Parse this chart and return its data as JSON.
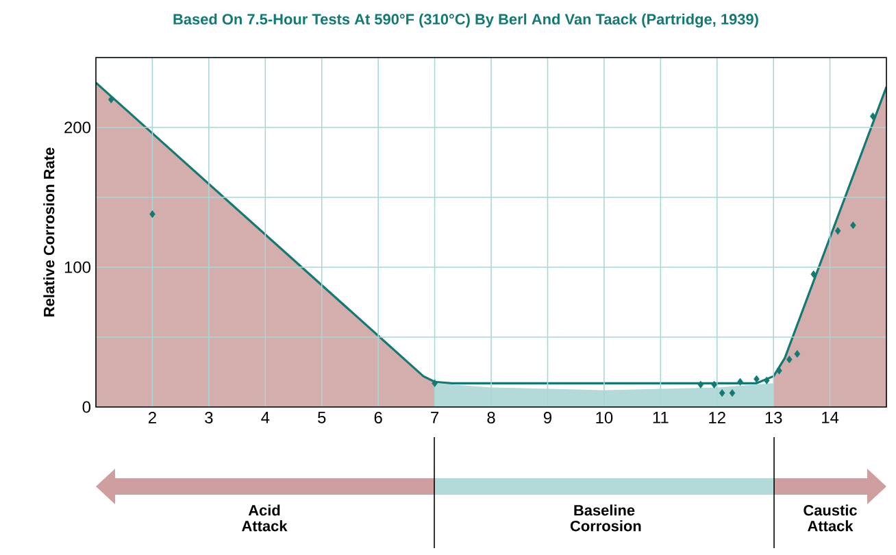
{
  "chart_data": {
    "type": "scatter",
    "title": "Based On 7.5-Hour Tests At 590°F (310°C) By Berl And Van Taack (Partridge, 1939)",
    "ylabel": "Relative Corrosion Rate",
    "xlim": [
      1,
      15
    ],
    "ylim": [
      0,
      250
    ],
    "xticks": [
      2,
      3,
      4,
      5,
      6,
      7,
      8,
      9,
      10,
      11,
      12,
      13,
      14
    ],
    "yticks": [
      0,
      {
        "value": 50,
        "label": null
      },
      100,
      {
        "value": 150,
        "label": null
      },
      200,
      {
        "value": 250,
        "label": null
      }
    ],
    "grid": true,
    "series": [
      {
        "type": "area",
        "color": "#d4adad",
        "x": [
          1,
          6.8,
          7
        ],
        "values": [
          232,
          22,
          18
        ]
      },
      {
        "type": "area",
        "color": "#b3dad8",
        "x": [
          7,
          8,
          10,
          12,
          13
        ],
        "values": [
          17,
          14,
          12,
          14,
          17
        ]
      },
      {
        "type": "area",
        "color": "#d4adad",
        "x": [
          13,
          13.2,
          15
        ],
        "values": [
          22,
          35,
          229
        ]
      },
      {
        "type": "line",
        "color": "#127a72",
        "line_style": "solid",
        "x": [
          1,
          6.8,
          7,
          7.3,
          12.7,
          13,
          13.2,
          15
        ],
        "values": [
          232,
          22,
          18,
          17,
          17,
          22,
          35,
          229
        ]
      },
      {
        "color": "#127a72",
        "marker": "diamond",
        "x": [
          1.27,
          2.0,
          7.0,
          11.71,
          11.95,
          12.09,
          12.27,
          12.41,
          12.7,
          12.88,
          13.1,
          13.28,
          13.42,
          13.71,
          14.14,
          14.41,
          14.76
        ],
        "values": [
          220,
          138,
          17,
          16,
          16,
          10,
          10,
          18,
          20,
          19,
          26,
          34,
          38,
          95,
          126,
          130,
          208
        ]
      }
    ],
    "annotations": [
      "Acid Attack",
      "Baseline Corrosion",
      "Caustic Attack"
    ]
  }
}
